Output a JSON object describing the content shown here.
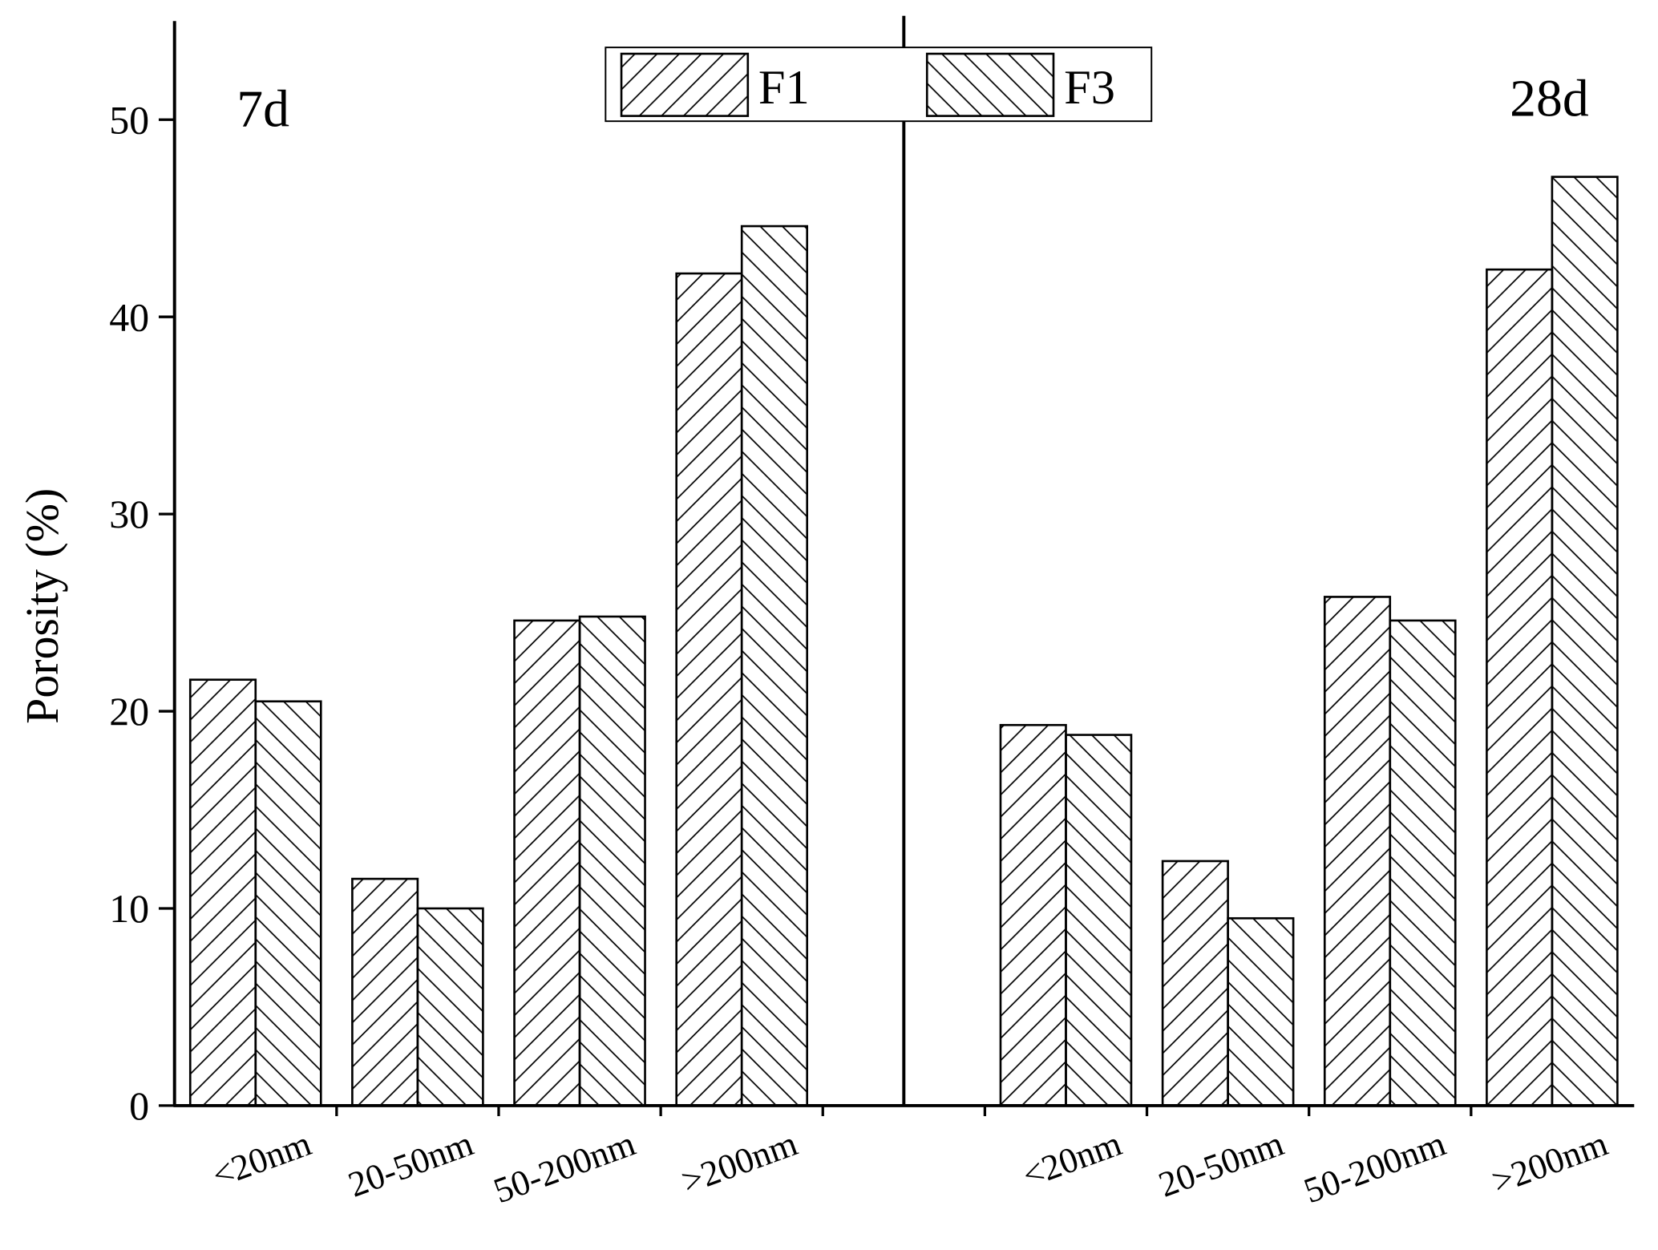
{
  "chart_data": {
    "type": "bar",
    "y_label": "Porosity (%)",
    "panel_labels": [
      "7d",
      "28d"
    ],
    "categories": [
      "<20nm",
      "20-50nm",
      "50-200nm",
      ">200nm",
      "<20nm",
      "20-50nm",
      "50-200nm",
      ">200nm"
    ],
    "series": [
      {
        "name": "F1",
        "color": "#000000",
        "hatch": "/",
        "values": [
          21.6,
          11.5,
          24.6,
          42.2,
          19.3,
          12.4,
          25.8,
          42.4
        ]
      },
      {
        "name": "F3",
        "color": "#000000",
        "hatch": "\\",
        "values": [
          20.5,
          10.0,
          24.8,
          44.6,
          18.8,
          9.5,
          24.6,
          47.1
        ]
      }
    ],
    "ylim": [
      0,
      55
    ],
    "yticks": [
      0,
      10,
      20,
      30,
      40,
      50
    ],
    "grid": false
  }
}
